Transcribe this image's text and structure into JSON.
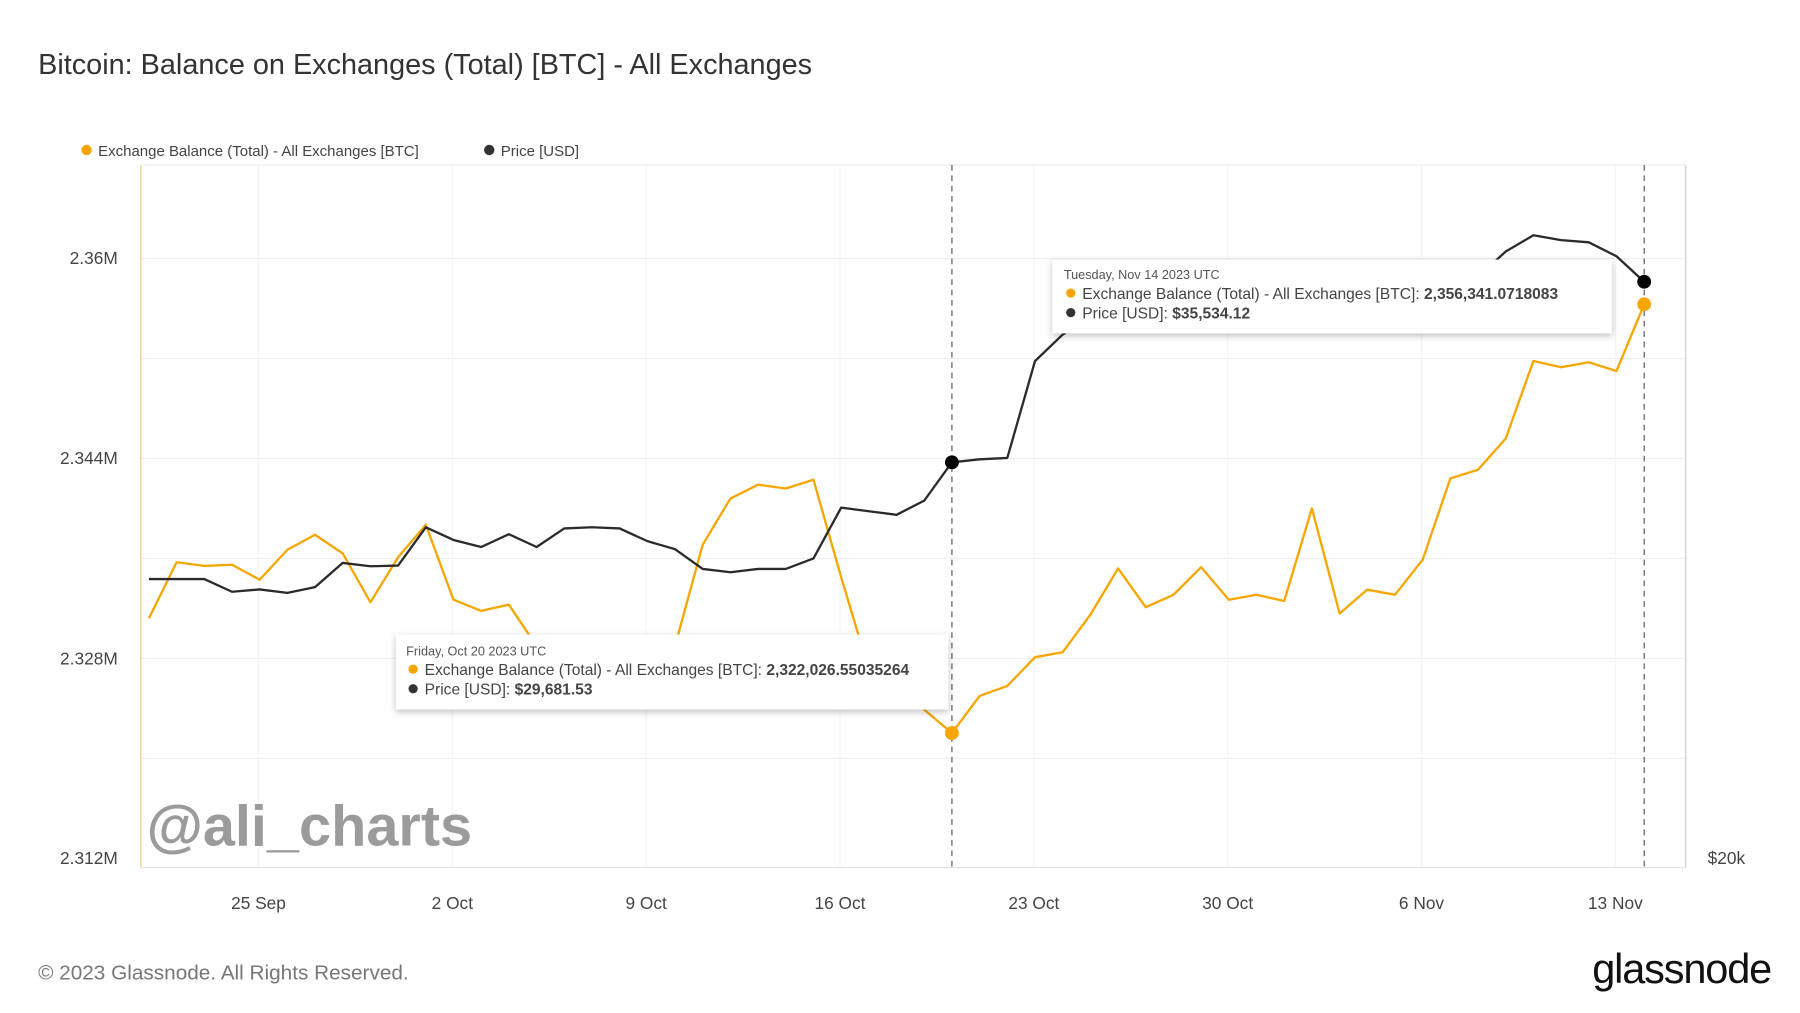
{
  "chart_data": {
    "type": "line",
    "title": "Bitcoin: Balance on Exchanges (Total) [BTC] - All Exchanges",
    "legend": {
      "placement": "top-left",
      "entries": [
        "Exchange Balance (Total) - All Exchanges [BTC]",
        "Price [USD]"
      ]
    },
    "x_start": "2023-09-21",
    "x_end": "2023-11-14",
    "x_ticks": [
      "25 Sep",
      "2 Oct",
      "9 Oct",
      "16 Oct",
      "23 Oct",
      "30 Oct",
      "6 Nov",
      "13 Nov"
    ],
    "y_left": {
      "ticks": [
        "2.312M",
        "2.328M",
        "2.344M",
        "2.36M"
      ],
      "range": [
        2312000,
        2368000
      ]
    },
    "y_right": {
      "ticks": [
        "$20k"
      ],
      "scale": "log"
    },
    "grid": true,
    "series": [
      {
        "name": "Exchange Balance (Total) - All Exchanges [BTC]",
        "color": "#f7a600",
        "axis": "left",
        "values": [
          2331200,
          2335700,
          2335400,
          2335500,
          2334300,
          2336700,
          2337900,
          2336400,
          2332500,
          2336100,
          2338700,
          2332700,
          2331800,
          2332300,
          2329000,
          2327600,
          2327100,
          2328100,
          2328500,
          2329000,
          2337100,
          2340800,
          2341900,
          2341600,
          2342300,
          2334500,
          2327100,
          2326200,
          2323900,
          2322026.55,
          2325000,
          2325800,
          2328100,
          2328500,
          2331500,
          2335200,
          2332100,
          2333100,
          2335300,
          2332700,
          2333100,
          2332600,
          2340000,
          2331600,
          2333500,
          2333100,
          2335900,
          2342400,
          2343100,
          2345600,
          2351800,
          2351300,
          2351700,
          2351000,
          2356341.07
        ]
      },
      {
        "name": "Price [USD]",
        "color": "#2b2b2b",
        "axis": "right",
        "values": [
          26420,
          26420,
          26420,
          26090,
          26150,
          26060,
          26210,
          26850,
          26760,
          26780,
          27820,
          27470,
          27280,
          27630,
          27280,
          27790,
          27820,
          27790,
          27440,
          27220,
          26690,
          26600,
          26690,
          26690,
          26970,
          28370,
          28270,
          28170,
          28570,
          29681.53,
          29770,
          29810,
          32830,
          33710,
          34300,
          34020,
          34300,
          34420,
          34500,
          34420,
          34580,
          34820,
          34980,
          34820,
          34900,
          34980,
          34820,
          34980,
          35710,
          36620,
          37220,
          37040,
          36960,
          36450,
          35534.12
        ]
      }
    ],
    "tooltips": [
      {
        "date": "Friday, Oct 20 2023 UTC",
        "index": 29,
        "balance_label": "Exchange Balance (Total) - All Exchanges [BTC]: ",
        "balance_value": "2,322,026.55035264",
        "price_label": "Price [USD]: ",
        "price_value": "$29,681.53"
      },
      {
        "date": "Tuesday, Nov 14 2023 UTC",
        "index": 54,
        "balance_label": "Exchange Balance (Total) - All Exchanges [BTC]: ",
        "balance_value": "2,356,341.0718083",
        "price_label": "Price [USD]: ",
        "price_value": "$35,534.12"
      }
    ]
  },
  "watermark": "@ali_charts",
  "footer": {
    "copyright": "© 2023 Glassnode. All Rights Reserved.",
    "brand": "glassnode"
  }
}
